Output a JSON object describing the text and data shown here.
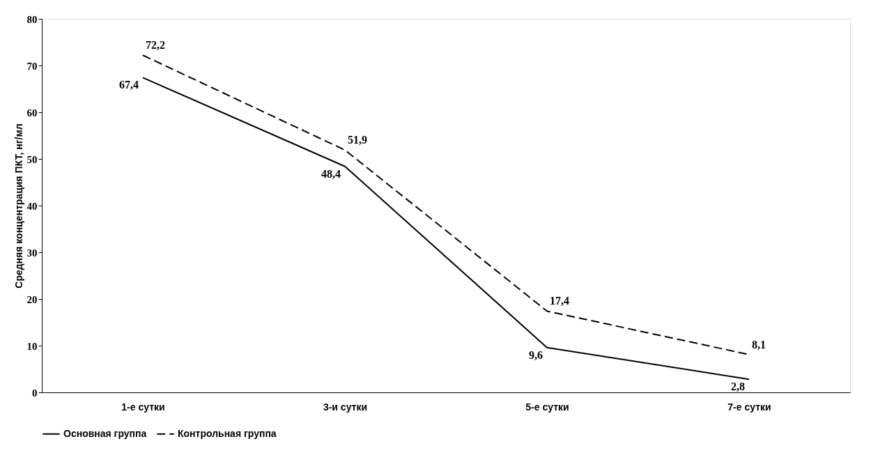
{
  "chart_data": {
    "type": "line",
    "ylabel": "Средняя концентрация ПКТ, нг/мл",
    "categories": [
      "1-е сутки",
      "3-и сутки",
      "5-е сутки",
      "7-е сутки"
    ],
    "series": [
      {
        "name": "Основная группа",
        "color": "#000000",
        "line_style": "solid",
        "values": [
          67.4,
          48.4,
          9.6,
          2.8
        ],
        "value_labels": [
          "67,4",
          "48,4",
          "9,6",
          "2,8"
        ]
      },
      {
        "name": "Контрольная группа",
        "color": "#000000",
        "line_style": "dashed",
        "values": [
          72.2,
          51.9,
          17.4,
          8.1
        ],
        "value_labels": [
          "72,2",
          "51,9",
          "17,4",
          "8,1"
        ]
      }
    ],
    "ylim": [
      0,
      80
    ],
    "yticks": [
      0,
      10,
      20,
      30,
      40,
      50,
      60,
      70,
      80
    ],
    "grid": false,
    "legend": "bottom",
    "marker": "none"
  }
}
